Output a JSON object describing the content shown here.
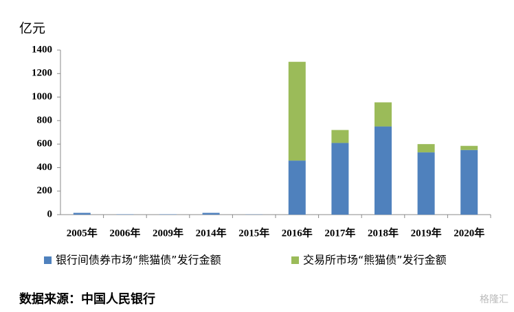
{
  "chart_data": {
    "type": "stacked_bar",
    "y_label": "亿元",
    "categories": [
      "2005年",
      "2006年",
      "2009年",
      "2014年",
      "2015年",
      "2016年",
      "2017年",
      "2018年",
      "2019年",
      "2020年"
    ],
    "series": [
      {
        "name": "银行间债券市场“熊猫债”发行金额",
        "color": "#4f81bd",
        "values": [
          15,
          3,
          3,
          15,
          2,
          460,
          610,
          750,
          530,
          550
        ]
      },
      {
        "name": "交易所市场“熊猫债”发行金额",
        "color": "#9bbb59",
        "values": [
          0,
          0,
          0,
          0,
          0,
          840,
          110,
          205,
          70,
          35
        ]
      }
    ],
    "ylim": [
      0,
      1400
    ],
    "yticks": [
      0,
      200,
      400,
      600,
      800,
      1000,
      1200,
      1400
    ],
    "grid": false,
    "source": "数据来源：中国人民银行",
    "watermark": "格隆汇"
  }
}
